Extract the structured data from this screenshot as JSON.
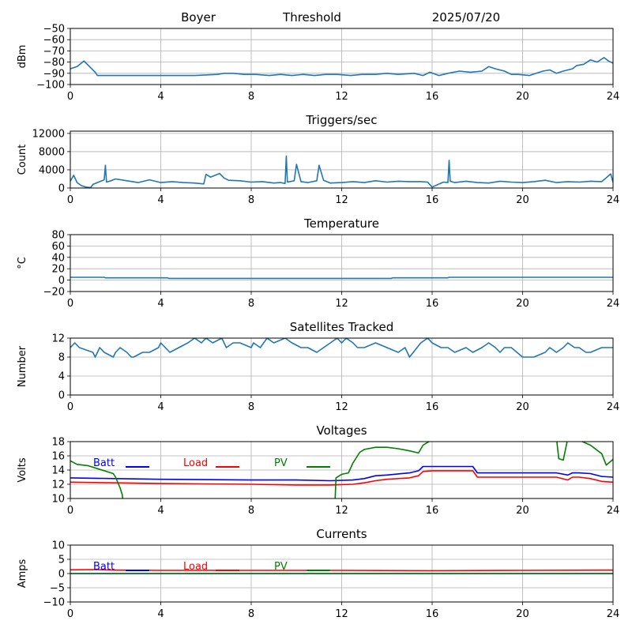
{
  "header": {
    "station": "Boyer",
    "mode": "Threshold",
    "date": "2025/07/20"
  },
  "chart_data": [
    {
      "type": "line",
      "title": "",
      "ylabel": "dBm",
      "xlim": [
        0,
        24
      ],
      "xticks": [
        0,
        4,
        8,
        12,
        16,
        20,
        24
      ],
      "ylim": [
        -100,
        -50
      ],
      "yticks": [
        -100,
        -90,
        -80,
        -70,
        -60,
        -50
      ],
      "grid": true,
      "series": [
        {
          "color": "#1f77b4",
          "x": [
            0,
            0.3,
            0.6,
            0.9,
            1.1,
            1.2,
            3,
            4.5,
            5.5,
            6.5,
            6.8,
            7.2,
            7.7,
            8.2,
            8.8,
            9.3,
            9.8,
            10.3,
            10.8,
            11.3,
            11.8,
            12.4,
            12.9,
            13.5,
            14,
            14.5,
            15.2,
            15.6,
            15.9,
            16.3,
            16.7,
            17.2,
            17.7,
            18.2,
            18.5,
            18.8,
            19.2,
            19.5,
            19.8,
            20.3,
            20.6,
            20.9,
            21.2,
            21.5,
            21.8,
            22.2,
            22.4,
            22.7,
            23,
            23.3,
            23.6,
            23.8,
            24
          ],
          "y": [
            -86,
            -84,
            -79,
            -85,
            -89,
            -92,
            -92,
            -92,
            -92,
            -91,
            -90,
            -90,
            -91,
            -91,
            -92,
            -91,
            -92,
            -91,
            -92,
            -91,
            -91,
            -92,
            -91,
            -91,
            -90,
            -91,
            -90,
            -92,
            -89,
            -92,
            -90,
            -88,
            -89,
            -88,
            -84,
            -86,
            -88,
            -91,
            -91,
            -92,
            -90,
            -88,
            -87,
            -90,
            -88,
            -86,
            -83,
            -82,
            -78,
            -80,
            -76,
            -79,
            -81
          ]
        }
      ]
    },
    {
      "type": "line",
      "title": "Triggers/sec",
      "ylabel": "Count",
      "xlim": [
        0,
        24
      ],
      "xticks": [
        0,
        4,
        8,
        12,
        16,
        20,
        24
      ],
      "ylim": [
        0,
        12500
      ],
      "yticks": [
        0,
        4000,
        8000,
        12000
      ],
      "grid": true,
      "series": [
        {
          "color": "#1f77b4",
          "x": [
            0,
            0.15,
            0.3,
            0.5,
            0.7,
            0.9,
            1.0,
            1.2,
            1.5,
            1.55,
            1.6,
            1.8,
            2.0,
            2.5,
            3.0,
            3.5,
            4.0,
            4.5,
            5.0,
            5.5,
            5.9,
            6.0,
            6.2,
            6.6,
            6.8,
            7.0,
            7.5,
            8.0,
            8.5,
            9.0,
            9.3,
            9.5,
            9.55,
            9.6,
            9.9,
            10.0,
            10.2,
            10.5,
            10.9,
            11.0,
            11.2,
            11.5,
            12.0,
            12.5,
            13.0,
            13.5,
            14.0,
            14.5,
            15.0,
            15.5,
            15.8,
            16.0,
            16.5,
            16.7,
            16.75,
            16.8,
            17.0,
            17.5,
            18.0,
            18.5,
            19.0,
            19.5,
            20.0,
            20.5,
            21.0,
            21.5,
            22.0,
            22.5,
            23.0,
            23.5,
            23.9,
            24
          ],
          "y": [
            1500,
            2800,
            1200,
            500,
            200,
            100,
            800,
            1200,
            1800,
            5000,
            1300,
            1600,
            2000,
            1600,
            1200,
            1800,
            1200,
            1400,
            1200,
            1100,
            900,
            3000,
            2400,
            3200,
            2200,
            1700,
            1600,
            1300,
            1400,
            1100,
            1200,
            1000,
            7000,
            1300,
            1600,
            5200,
            1400,
            1200,
            1600,
            5000,
            1700,
            1100,
            1200,
            1400,
            1200,
            1600,
            1300,
            1500,
            1400,
            1400,
            1300,
            200,
            1300,
            1200,
            6100,
            1500,
            1200,
            1500,
            1200,
            1100,
            1500,
            1300,
            1200,
            1400,
            1700,
            1200,
            1400,
            1300,
            1500,
            1400,
            3100,
            1200
          ]
        }
      ]
    },
    {
      "type": "line",
      "title": "Temperature",
      "ylabel": "°C",
      "xlim": [
        0,
        24
      ],
      "xticks": [
        0,
        4,
        8,
        12,
        16,
        20,
        24
      ],
      "ylim": [
        -20,
        80
      ],
      "yticks": [
        -20,
        0,
        20,
        40,
        60,
        80
      ],
      "grid": true,
      "series": [
        {
          "color": "#1f77b4",
          "x": [
            0,
            1.5,
            1.55,
            4.3,
            4.35,
            14.2,
            14.25,
            16.7,
            16.75,
            24
          ],
          "y": [
            5,
            5,
            4,
            4,
            3,
            3,
            4,
            4,
            5,
            5
          ]
        }
      ]
    },
    {
      "type": "line",
      "title": "Satellites Tracked",
      "ylabel": "Number",
      "xlim": [
        0,
        24
      ],
      "xticks": [
        0,
        4,
        8,
        12,
        16,
        20,
        24
      ],
      "ylim": [
        0,
        12
      ],
      "yticks": [
        0,
        4,
        8,
        12
      ],
      "grid": true,
      "series": [
        {
          "color": "#1f77b4",
          "x": [
            0,
            0.2,
            0.4,
            1.0,
            1.1,
            1.3,
            1.5,
            1.9,
            2.0,
            2.2,
            2.5,
            2.7,
            2.8,
            3.2,
            3.5,
            3.9,
            4.0,
            4.2,
            4.4,
            4.8,
            5.2,
            5.5,
            5.8,
            6.0,
            6.3,
            6.7,
            6.9,
            7.2,
            7.5,
            8.0,
            8.1,
            8.4,
            8.7,
            9.0,
            9.5,
            9.8,
            10.2,
            10.5,
            10.9,
            11.2,
            11.5,
            11.8,
            12.0,
            12.2,
            12.5,
            12.7,
            13.0,
            13.5,
            14.0,
            14.5,
            14.8,
            15.0,
            15.5,
            15.8,
            16.0,
            16.4,
            16.7,
            17.0,
            17.5,
            17.8,
            18.2,
            18.5,
            18.8,
            19.0,
            19.2,
            19.5,
            20.0,
            20.5,
            21.0,
            21.2,
            21.5,
            21.8,
            22.0,
            22.3,
            22.5,
            22.8,
            23.0,
            23.5,
            24
          ],
          "y": [
            10,
            11,
            10,
            9,
            8,
            10,
            9,
            8,
            9,
            10,
            9,
            8,
            8,
            9,
            9,
            10,
            11,
            10,
            9,
            10,
            11,
            12,
            11,
            12,
            11,
            12,
            10,
            11,
            11,
            10,
            11,
            10,
            12,
            11,
            12,
            11,
            10,
            10,
            9,
            10,
            11,
            12,
            11,
            12,
            11,
            10,
            10,
            11,
            10,
            9,
            10,
            8,
            11,
            12,
            11,
            10,
            10,
            9,
            10,
            9,
            10,
            11,
            10,
            9,
            10,
            10,
            8,
            8,
            9,
            10,
            9,
            10,
            11,
            10,
            10,
            9,
            9,
            10,
            10
          ]
        }
      ]
    },
    {
      "type": "line",
      "title": "Voltages",
      "ylabel": "Volts",
      "xlim": [
        0,
        24
      ],
      "xticks": [
        0,
        4,
        8,
        12,
        16,
        20,
        24
      ],
      "ylim": [
        10,
        18
      ],
      "yticks": [
        10,
        12,
        14,
        16,
        18
      ],
      "grid": true,
      "legend": [
        "Batt",
        "Load",
        "PV"
      ],
      "series": [
        {
          "name": "Batt",
          "color": "#0000ff",
          "x": [
            0,
            2,
            4,
            8,
            10,
            11.5,
            12.5,
            13,
            13.5,
            14,
            15,
            15.4,
            15.6,
            16,
            17.8,
            18,
            19,
            21.5,
            22,
            22.2,
            22.5,
            23,
            23.5,
            24
          ],
          "y": [
            12.9,
            12.8,
            12.7,
            12.6,
            12.6,
            12.5,
            12.6,
            12.8,
            13.2,
            13.3,
            13.6,
            13.9,
            14.5,
            14.5,
            14.5,
            13.6,
            13.6,
            13.6,
            13.3,
            13.6,
            13.6,
            13.5,
            13.1,
            13.0
          ]
        },
        {
          "name": "Load",
          "color": "#ff0000",
          "x": [
            0,
            2,
            4,
            8,
            10,
            11.5,
            12.5,
            13,
            13.5,
            14,
            15,
            15.4,
            15.6,
            16,
            17.8,
            18,
            19,
            21.5,
            22,
            22.2,
            22.5,
            23,
            23.5,
            24
          ],
          "y": [
            12.3,
            12.2,
            12.1,
            12.0,
            11.9,
            11.9,
            12.0,
            12.2,
            12.5,
            12.7,
            12.9,
            13.2,
            13.8,
            13.9,
            13.9,
            13.0,
            13.0,
            13.0,
            12.6,
            13.0,
            13.0,
            12.8,
            12.4,
            12.3
          ]
        },
        {
          "name": "PV",
          "color": "#008000",
          "x": [
            0,
            0.3,
            0.8,
            1.2,
            1.5,
            1.9,
            2.0,
            2.2,
            2.3,
            2.35,
            11.7,
            11.75,
            12.0,
            12.3,
            12.5,
            12.8,
            13.0,
            13.5,
            14.0,
            14.5,
            15.0,
            15.4,
            15.6,
            15.8,
            16.0,
            21.5,
            21.6,
            21.8,
            22.0,
            22.2,
            22.5,
            23.0,
            23.5,
            23.7,
            24
          ],
          "y": [
            15.3,
            14.8,
            14.6,
            14.2,
            13.9,
            13.5,
            13.0,
            11.5,
            10.5,
            9.0,
            9.0,
            12.9,
            13.4,
            13.6,
            15.0,
            16.5,
            16.9,
            17.2,
            17.2,
            17.0,
            16.7,
            16.4,
            17.5,
            17.9,
            18.2,
            18.5,
            15.6,
            15.4,
            18.5,
            18.7,
            18.2,
            17.5,
            16.3,
            14.7,
            15.5
          ]
        }
      ]
    },
    {
      "type": "line",
      "title": "Currents",
      "ylabel": "Amps",
      "xlim": [
        0,
        24
      ],
      "xticks": [
        0,
        4,
        8,
        12,
        16,
        20,
        24
      ],
      "ylim": [
        -10,
        10
      ],
      "yticks": [
        -10,
        -5,
        0,
        5,
        10
      ],
      "grid": true,
      "legend": [
        "Batt",
        "Load",
        "PV"
      ],
      "series": [
        {
          "name": "Batt",
          "color": "#0000ff",
          "x": [
            0,
            24
          ],
          "y": [
            0,
            0
          ]
        },
        {
          "name": "Load",
          "color": "#ff0000",
          "x": [
            0,
            1,
            2,
            4,
            8,
            12,
            16,
            20,
            24
          ],
          "y": [
            1.3,
            1.4,
            1.2,
            1.1,
            1.1,
            1.1,
            1.0,
            1.1,
            1.2
          ]
        },
        {
          "name": "PV",
          "color": "#008000",
          "x": [
            0,
            24
          ],
          "y": [
            0,
            0
          ]
        }
      ]
    }
  ]
}
